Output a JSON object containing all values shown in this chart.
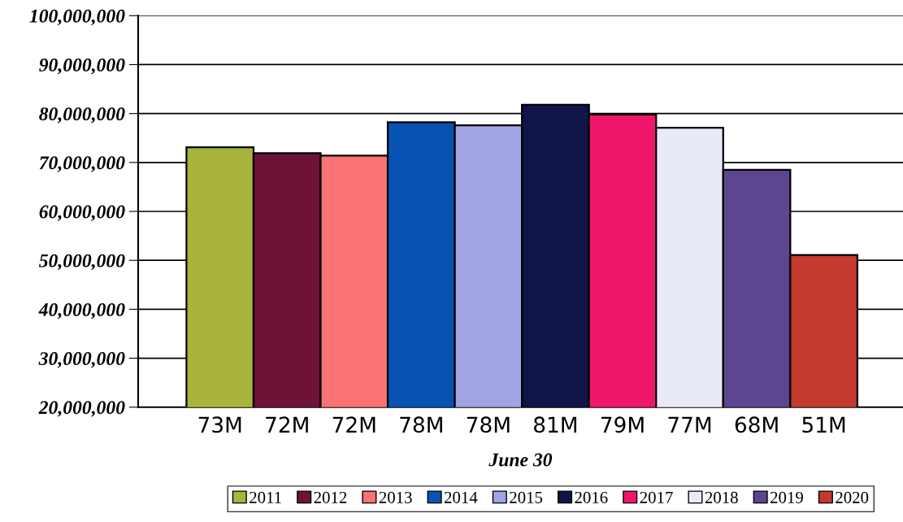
{
  "chart_data": {
    "type": "bar",
    "xlabel": "June 30",
    "categories": [
      "73M",
      "72M",
      "72M",
      "78M",
      "78M",
      "81M",
      "79M",
      "77M",
      "68M",
      "51M"
    ],
    "series": [
      {
        "name": "2011",
        "color": "#a8b43a",
        "values": [
          73100000,
          null,
          null,
          null,
          null,
          null,
          null,
          null,
          null,
          null
        ]
      },
      {
        "name": "2012",
        "color": "#6e1238",
        "values": [
          null,
          71900000,
          null,
          null,
          null,
          null,
          null,
          null,
          null,
          null
        ]
      },
      {
        "name": "2013",
        "color": "#fb7273",
        "values": [
          null,
          null,
          71400000,
          null,
          null,
          null,
          null,
          null,
          null,
          null
        ]
      },
      {
        "name": "2014",
        "color": "#0653b4",
        "values": [
          null,
          null,
          null,
          78200000,
          null,
          null,
          null,
          null,
          null,
          null
        ]
      },
      {
        "name": "2015",
        "color": "#a0a4e2",
        "values": [
          null,
          null,
          null,
          null,
          77600000,
          null,
          null,
          null,
          null,
          null
        ]
      },
      {
        "name": "2016",
        "color": "#0f1548",
        "values": [
          null,
          null,
          null,
          null,
          null,
          81800000,
          null,
          null,
          null,
          null
        ]
      },
      {
        "name": "2017",
        "color": "#f0176a",
        "values": [
          null,
          null,
          null,
          null,
          null,
          null,
          79800000,
          null,
          null,
          null
        ]
      },
      {
        "name": "2018",
        "color": "#e8eaf8",
        "values": [
          null,
          null,
          null,
          null,
          null,
          null,
          null,
          77100000,
          null,
          null
        ]
      },
      {
        "name": "2019",
        "color": "#5c4690",
        "values": [
          null,
          null,
          null,
          null,
          null,
          null,
          null,
          null,
          68500000,
          null
        ]
      },
      {
        "name": "2020",
        "color": "#c43a2e",
        "values": [
          null,
          null,
          null,
          null,
          null,
          null,
          null,
          null,
          null,
          51100000
        ]
      }
    ],
    "ylim": [
      20000000,
      100000000
    ],
    "yticks": [
      {
        "value": 20000000,
        "label": "20,000,000"
      },
      {
        "value": 30000000,
        "label": "30,000,000"
      },
      {
        "value": 40000000,
        "label": "40,000,000"
      },
      {
        "value": 50000000,
        "label": "50,000,000"
      },
      {
        "value": 60000000,
        "label": "60,000,000"
      },
      {
        "value": 70000000,
        "label": "70,000,000"
      },
      {
        "value": 80000000,
        "label": "80,000,000"
      },
      {
        "value": 90000000,
        "label": "90,000,000"
      },
      {
        "value": 100000000,
        "label": "100,000,000"
      }
    ],
    "grid": "y",
    "legend": "bottom"
  }
}
